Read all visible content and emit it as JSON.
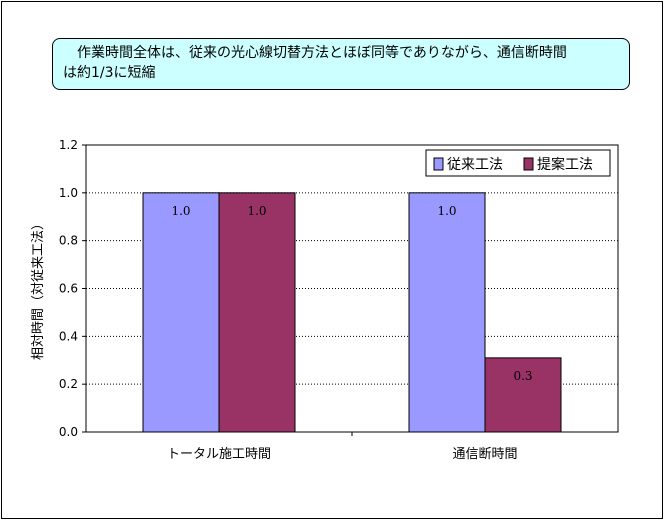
{
  "note": {
    "text": "　作業時間全体は、従来の光心線切替方法とほぼ同等でありながら、通信断時間\nは約1/3に短縮"
  },
  "chart_data": {
    "type": "bar",
    "categories": [
      "トータル施工時間",
      "通信断時間"
    ],
    "series": [
      {
        "name": "従来工法",
        "values": [
          1.0,
          1.0
        ],
        "color": "#9999ff"
      },
      {
        "name": "提案工法",
        "values": [
          1.0,
          0.31
        ],
        "color": "#993366"
      }
    ],
    "data_labels": [
      [
        "1.0",
        "1.0"
      ],
      [
        "1.0",
        "0.3"
      ]
    ],
    "ylabel": "相対時間（対従来工法）",
    "xlabel": "",
    "ylim": [
      0,
      1.2
    ],
    "yticks": [
      "0.0",
      "0.2",
      "0.4",
      "0.6",
      "0.8",
      "1.0",
      "1.2"
    ],
    "ytick_values": [
      0,
      0.2,
      0.4,
      0.6,
      0.8,
      1.0,
      1.2
    ],
    "grid": true,
    "legend_position": "top-right"
  }
}
